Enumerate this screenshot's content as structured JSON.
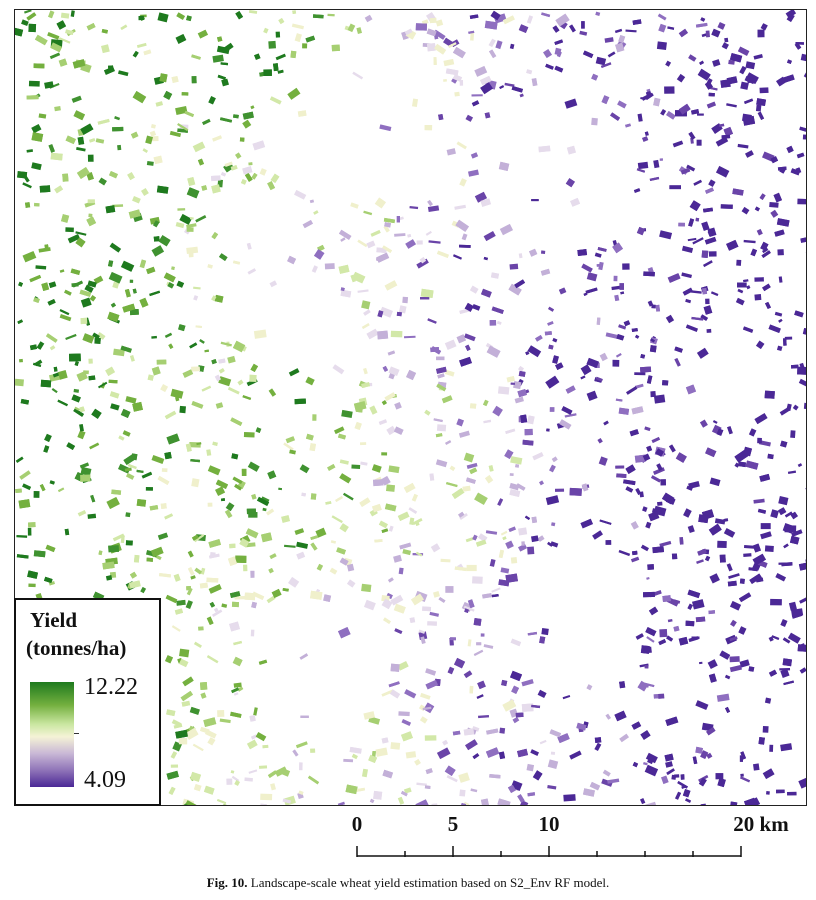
{
  "map": {
    "palette": [
      "#1e7a1e",
      "#3f9230",
      "#74b03f",
      "#a6cf72",
      "#d2e8a8",
      "#f0f0cc",
      "#e6dcec",
      "#c3b0d8",
      "#8f6fc0",
      "#6a44a8",
      "#4b2896"
    ]
  },
  "legend": {
    "title_line1": "Yield",
    "title_line2": "(tonnes/ha)",
    "max_value": "12.22",
    "min_value": "4.09",
    "color_high": "#1e7a1e",
    "color_mid": "#f5f3d6",
    "color_low": "#4b2896"
  },
  "scalebar": {
    "labels": [
      "0",
      "5",
      "10",
      "20 km"
    ]
  },
  "caption": {
    "label": "Fig. 10.",
    "text": "Landscape-scale wheat yield estimation based on S2_Env RF model."
  }
}
